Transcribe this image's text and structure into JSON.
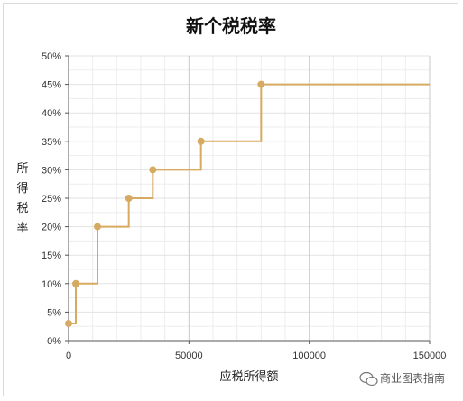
{
  "colors": {
    "series": "#D7AA62",
    "grid_minor": "#EDEDED",
    "grid_major": "#C9C9C9",
    "axis": "#555555",
    "text": "#222222"
  },
  "watermark": {
    "text": "商业图表指南",
    "icon": "wechat-icon"
  },
  "chart_data": {
    "type": "line",
    "step": true,
    "title": "新个税税率",
    "xlabel": "应税所得额",
    "ylabel": "所得税率",
    "xlim": [
      0,
      150000
    ],
    "ylim": [
      0,
      0.5
    ],
    "x_ticks": [
      0,
      50000,
      100000,
      150000
    ],
    "x_tick_labels": [
      "0",
      "50000",
      "100000",
      "150000"
    ],
    "y_ticks": [
      0,
      0.05,
      0.1,
      0.15,
      0.2,
      0.25,
      0.3,
      0.35,
      0.4,
      0.45,
      0.5
    ],
    "y_tick_labels": [
      "0%",
      "5%",
      "10%",
      "15%",
      "20%",
      "25%",
      "30%",
      "35%",
      "40%",
      "45%",
      "50%"
    ],
    "grid": true,
    "legend": false,
    "series": [
      {
        "x": [
          0,
          3000,
          12000,
          25000,
          35000,
          55000,
          80000
        ],
        "y": [
          0.03,
          0.1,
          0.2,
          0.25,
          0.3,
          0.35,
          0.45
        ],
        "extend_to": 150000
      }
    ]
  }
}
